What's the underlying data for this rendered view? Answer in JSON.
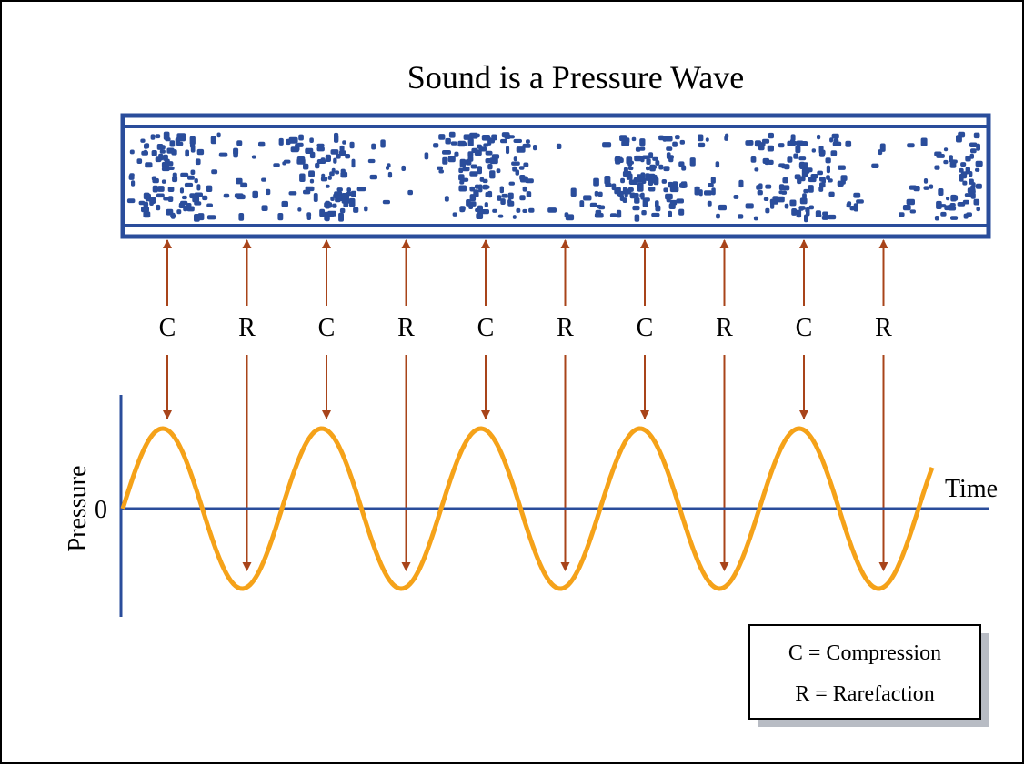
{
  "diagram": {
    "title": "Sound is a Pressure Wave",
    "wave_pattern": [
      "C",
      "R",
      "C",
      "R",
      "C",
      "R",
      "C",
      "R",
      "C",
      "R"
    ],
    "axes": {
      "y_label": "Pressure",
      "x_label": "Time",
      "zero_label": "0"
    },
    "legend": {
      "compression": "C = Compression",
      "rarefaction": "R = Rarefaction"
    },
    "colors": {
      "tube": "#2a4d9b",
      "particles": "#2a4d9b",
      "arrows": "#a8441a",
      "wave": "#f5a219",
      "axis": "#2a4d9b",
      "legend_shadow": "#b8bcc4"
    }
  }
}
